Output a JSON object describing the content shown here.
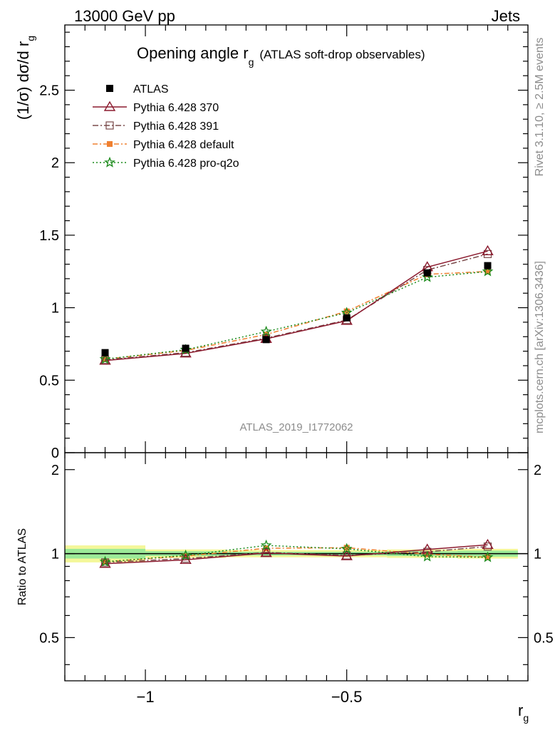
{
  "header": {
    "energy_label": "13000 GeV pp",
    "process_label": "Jets"
  },
  "side_text": {
    "rivet": "Rivet 3.1.10, ≥ 2.5M events",
    "mcplots": "mcplots.cern.ch [arXiv:1306.3436]"
  },
  "chart_data": [
    {
      "type": "line",
      "title_main": "Opening angle r",
      "title_sub": "g",
      "title_extra": "(ATLAS soft-drop observables)",
      "ylabel_main": "(1/σ) dσ/d r",
      "ylabel_sub": "g",
      "watermark": "ATLAS_2019_I1772062",
      "ylim": [
        0,
        2.95
      ],
      "xlim": [
        -1.2,
        -0.05
      ],
      "log_x": false,
      "y_ticks": [
        "0",
        "0.5",
        "1",
        "1.5",
        "2",
        "2.5"
      ],
      "y_tick_values": [
        0,
        0.5,
        1,
        1.5,
        2,
        2.5
      ],
      "legend_position": "top-left",
      "x": [
        -1.1,
        -0.9,
        -0.7,
        -0.5,
        -0.3,
        -0.15
      ],
      "series": [
        {
          "name": "ATLAS",
          "marker": "square",
          "color": "#000000",
          "dash": "",
          "values": [
            0.69,
            0.72,
            0.78,
            0.93,
            1.24,
            1.29
          ]
        },
        {
          "name": "Pythia 6.428 370",
          "marker": "triangle",
          "color": "#8b1a2e",
          "dash": "",
          "values": [
            0.635,
            0.685,
            0.785,
            0.91,
            1.28,
            1.39
          ]
        },
        {
          "name": "Pythia 6.428 391",
          "marker": "open-square",
          "color": "#7a4a4a",
          "dash": "8,3,2,3",
          "values": [
            0.64,
            0.69,
            0.79,
            0.915,
            1.26,
            1.37
          ]
        },
        {
          "name": "Pythia 6.428 default",
          "marker": "filled-square",
          "color": "#f08030",
          "dash": "7,3,2,3",
          "values": [
            0.645,
            0.705,
            0.815,
            0.975,
            1.23,
            1.25
          ]
        },
        {
          "name": "Pythia 6.428 pro-q2o",
          "marker": "star",
          "color": "#1a8a1a",
          "dash": "2,3",
          "values": [
            0.645,
            0.71,
            0.835,
            0.965,
            1.21,
            1.25
          ]
        }
      ]
    },
    {
      "type": "line",
      "ylabel": "Ratio to ATLAS",
      "xlabel_main": "r",
      "xlabel_sub": "g",
      "ylim": [
        0.35,
        2.3
      ],
      "xlim": [
        -1.2,
        -0.05
      ],
      "log_y": true,
      "y_ticks": [
        "0.5",
        "1",
        "2"
      ],
      "y_tick_values": [
        0.5,
        1,
        2
      ],
      "x_ticks": [
        "−1",
        "−0.5"
      ],
      "x_tick_values": [
        -1,
        -0.5
      ],
      "x": [
        -1.1,
        -0.9,
        -0.7,
        -0.5,
        -0.3,
        -0.15
      ],
      "band_green_halfwidth": [
        0.04,
        0.02,
        0.015,
        0.015,
        0.02,
        0.025
      ],
      "band_yellow_halfwidth": [
        0.07,
        0.035,
        0.03,
        0.03,
        0.035,
        0.04
      ],
      "series": [
        {
          "name": "Pythia 6.428 370",
          "values": [
            0.92,
            0.95,
            1.005,
            0.98,
            1.035,
            1.075
          ]
        },
        {
          "name": "Pythia 6.428 391",
          "values": [
            0.93,
            0.96,
            1.01,
            0.985,
            1.015,
            1.06
          ]
        },
        {
          "name": "Pythia 6.428 default",
          "values": [
            0.935,
            0.98,
            1.045,
            1.05,
            0.995,
            0.97
          ]
        },
        {
          "name": "Pythia 6.428 pro-q2o",
          "values": [
            0.935,
            0.985,
            1.07,
            1.04,
            0.975,
            0.97
          ]
        }
      ]
    }
  ]
}
